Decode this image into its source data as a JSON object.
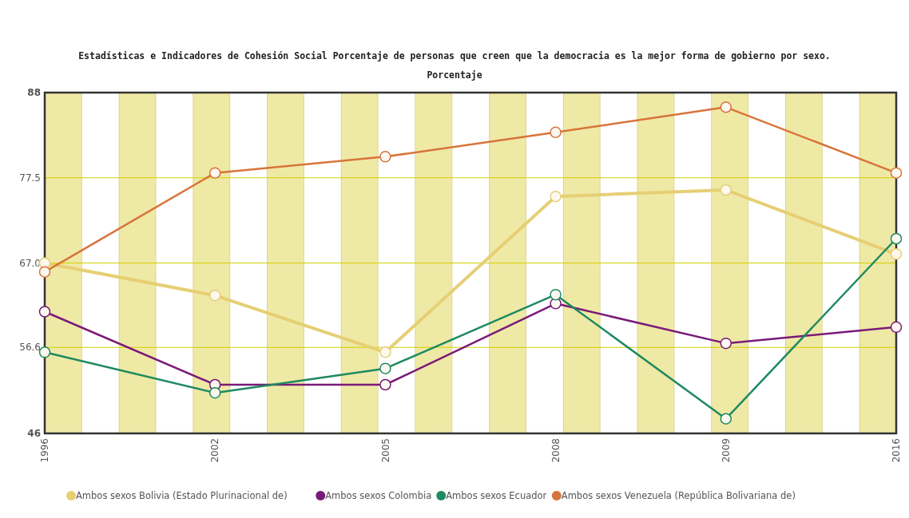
{
  "chart_data": {
    "type": "line",
    "title": "Estadísticas e Indicadores de Cohesión Social Porcentaje de personas que creen que la democracia es la mejor forma de gobierno por sexo. Porcentaje",
    "categories": [
      "1996",
      "2002",
      "2005",
      "2008",
      "2009",
      "2016"
    ],
    "series": [
      {
        "name": "Ambos sexos Bolivia (Estado Plurinacional de)",
        "color": "#e6cf74",
        "values": [
          67.0,
          63.0,
          56.0,
          75.2,
          76.0,
          68.1
        ]
      },
      {
        "name": "Ambos sexos Colombia",
        "color": "#7a1a78",
        "values": [
          61.0,
          52.0,
          52.0,
          62.0,
          57.1,
          59.1
        ]
      },
      {
        "name": "Ambos sexos Ecuador",
        "color": "#1f8a60",
        "values": [
          56.0,
          51.0,
          54.0,
          63.1,
          47.8,
          70.0
        ]
      },
      {
        "name": "Ambos sexos Venezuela (República Bolivariana de)",
        "color": "#d8743a",
        "values": [
          65.9,
          78.1,
          80.1,
          83.1,
          86.2,
          78.1
        ]
      }
    ],
    "ylim": [
      46,
      88
    ],
    "yticks": [
      46,
      56.6,
      {
        "value": 67,
        "label": "67.0"
      },
      77.5,
      88
    ],
    "grid": "y",
    "legend": "bottom",
    "marker": "circle",
    "line_style": "solid"
  }
}
